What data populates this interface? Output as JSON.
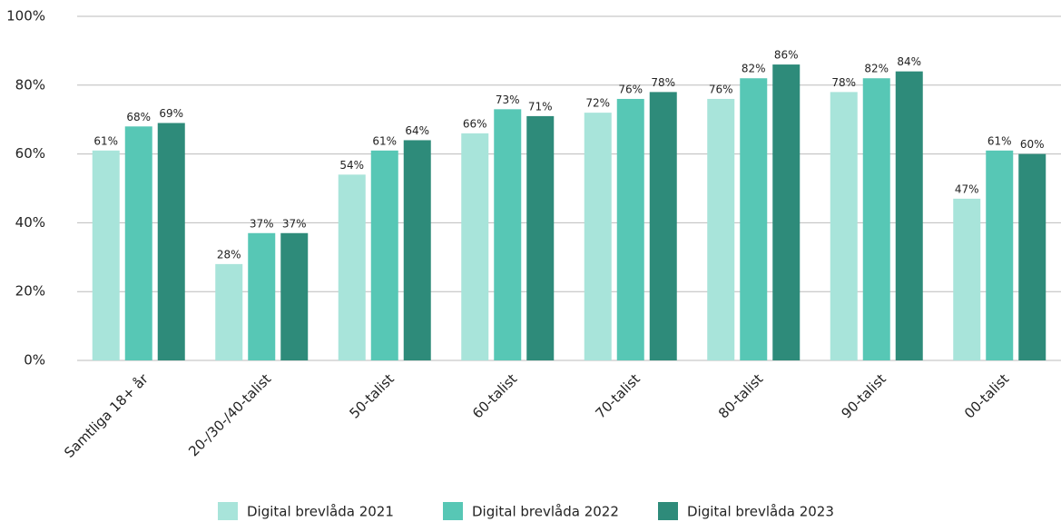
{
  "chart_data": {
    "type": "bar",
    "categories": [
      "Samtliga 18+ år",
      "20-/30-/40-talist",
      "50-talist",
      "60-talist",
      "70-talist",
      "80-talist",
      "90-talist",
      "00-talist"
    ],
    "series": [
      {
        "name": "Digital brevlåda 2021",
        "color": "#a8e4da",
        "values": [
          61,
          28,
          54,
          66,
          72,
          76,
          78,
          47
        ],
        "value_labels": [
          "61%",
          "28%",
          "54%",
          "66%",
          "72%",
          "76%",
          "78%",
          "47%"
        ]
      },
      {
        "name": "Digital brevlåda 2022",
        "color": "#57c7b5",
        "values": [
          68,
          37,
          61,
          73,
          76,
          82,
          82,
          61
        ],
        "value_labels": [
          "68%",
          "37%",
          "61%",
          "73%",
          "76%",
          "82%",
          "82%",
          "61%"
        ]
      },
      {
        "name": "Digital brevlåda 2023",
        "color": "#2e8b7a",
        "values": [
          69,
          37,
          64,
          71,
          78,
          86,
          84,
          60
        ],
        "value_labels": [
          "69%",
          "37%",
          "64%",
          "71%",
          "78%",
          "86%",
          "84%",
          "60%"
        ]
      }
    ],
    "ylim": [
      0,
      100
    ],
    "yticks": [
      {
        "value": 0,
        "label": "0%"
      },
      {
        "value": 20,
        "label": "20%"
      },
      {
        "value": 40,
        "label": "40%"
      },
      {
        "value": 60,
        "label": "60%"
      },
      {
        "value": 80,
        "label": "80%"
      },
      {
        "value": 100,
        "label": "100%"
      }
    ],
    "grid": true
  }
}
